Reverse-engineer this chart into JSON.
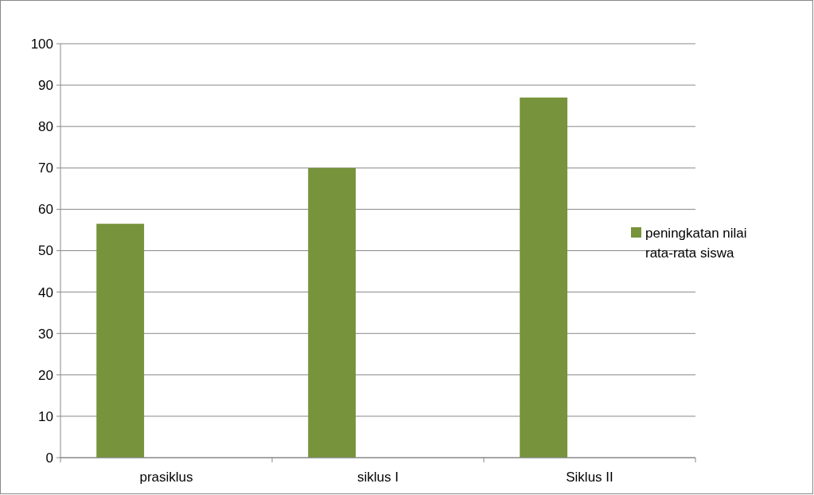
{
  "chart_data": {
    "type": "bar",
    "categories": [
      "prasiklus",
      "siklus I",
      "Siklus II"
    ],
    "series": [
      {
        "name": "peningkatan nilai rata-rata siswa",
        "color": "#77933c",
        "values": [
          56.5,
          70,
          87
        ]
      }
    ],
    "ylim": [
      0,
      100
    ],
    "yticks": [
      0,
      10,
      20,
      30,
      40,
      50,
      60,
      70,
      80,
      90,
      100
    ],
    "grid": "y",
    "legend": "right"
  }
}
